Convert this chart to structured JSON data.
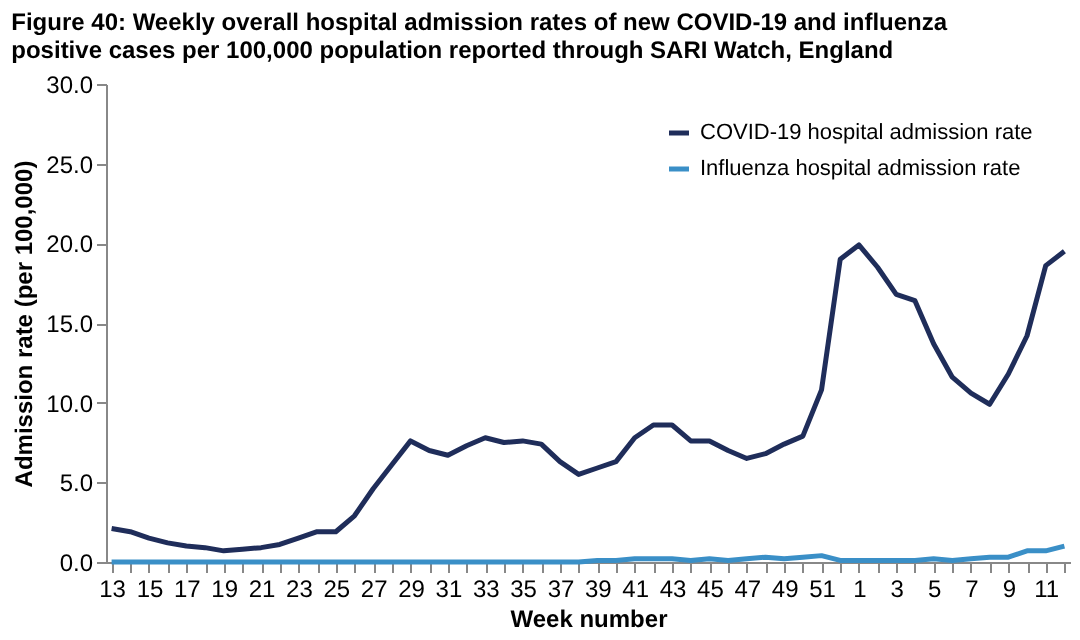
{
  "chart_data": {
    "type": "line",
    "title": "Figure 40: Weekly overall hospital admission rates of new COVID-19 and influenza positive cases per 100,000 population reported through SARI Watch, England",
    "xlabel": "Week number",
    "ylabel": "Admission rate (per 100,000)",
    "categories": [
      "13",
      null,
      "15",
      null,
      "17",
      null,
      "19",
      null,
      "21",
      null,
      "23",
      null,
      "25",
      null,
      "27",
      null,
      "29",
      null,
      "31",
      null,
      "33",
      null,
      "35",
      null,
      "37",
      null,
      "39",
      null,
      "41",
      null,
      "43",
      null,
      "45",
      null,
      "47",
      null,
      "49",
      null,
      "51",
      null,
      "1",
      null,
      "3",
      null,
      "5",
      null,
      "7",
      null,
      "9",
      null,
      "11",
      null
    ],
    "series": [
      {
        "name": "COVID-19 hospital admission rate",
        "color": "#1f2d5a",
        "values": [
          2.1,
          1.9,
          1.5,
          1.2,
          1.0,
          0.9,
          0.7,
          0.8,
          0.9,
          1.1,
          1.5,
          1.9,
          1.9,
          2.9,
          4.6,
          6.1,
          7.6,
          7.0,
          6.7,
          7.3,
          7.8,
          7.5,
          7.6,
          7.4,
          6.3,
          5.5,
          5.9,
          6.3,
          7.8,
          8.6,
          8.6,
          7.6,
          7.6,
          7.0,
          6.5,
          6.8,
          7.4,
          7.9,
          10.8,
          19.0,
          19.9,
          18.5,
          16.8,
          16.4,
          13.7,
          11.6,
          10.6,
          9.9,
          11.8,
          14.2,
          18.6,
          19.5
        ]
      },
      {
        "name": "Influenza hospital admission rate",
        "color": "#3a8fc7",
        "values": [
          0.0,
          0.0,
          0.0,
          0.0,
          0.0,
          0.0,
          0.0,
          0.0,
          0.0,
          0.0,
          0.0,
          0.0,
          0.0,
          0.0,
          0.0,
          0.0,
          0.0,
          0.0,
          0.0,
          0.0,
          0.0,
          0.0,
          0.0,
          0.0,
          0.0,
          0.0,
          0.1,
          0.1,
          0.2,
          0.2,
          0.2,
          0.1,
          0.2,
          0.1,
          0.2,
          0.3,
          0.2,
          0.3,
          0.4,
          0.1,
          0.1,
          0.1,
          0.1,
          0.1,
          0.2,
          0.1,
          0.2,
          0.3,
          0.3,
          0.7,
          0.7,
          1.0
        ]
      }
    ],
    "ylim": [
      0,
      30
    ],
    "yticks": [
      {
        "value": 0,
        "label": "0.0"
      },
      {
        "value": 5,
        "label": "5.0"
      },
      {
        "value": 10,
        "label": "10.0"
      },
      {
        "value": 15,
        "label": "15.0"
      },
      {
        "value": 20,
        "label": "20.0"
      },
      {
        "value": 25,
        "label": "25.0"
      },
      {
        "value": 30,
        "label": "30.0"
      }
    ],
    "grid": false,
    "legend": "top right",
    "marker": "none",
    "line_style": "solid"
  }
}
